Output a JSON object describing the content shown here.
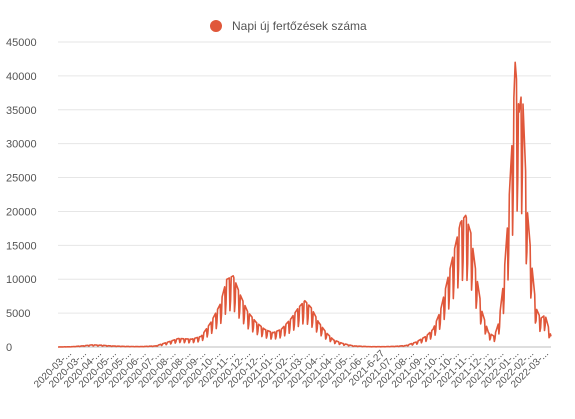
{
  "chart_data": {
    "type": "line",
    "legend": {
      "position": "top",
      "label": "Napi új fertőzések száma"
    },
    "colors": {
      "series": "#e0573a",
      "grid": "#e6e6e6",
      "axis_text": "#555555"
    },
    "ylim": [
      0,
      45000
    ],
    "y_ticks": [
      0,
      5000,
      10000,
      15000,
      20000,
      25000,
      30000,
      35000,
      40000,
      45000
    ],
    "x_range": [
      "2020-03-04",
      "2022-03-31"
    ],
    "x_tick_labels": [
      "2020-03-...",
      "2020-03-...",
      "2020-04-...",
      "2020-05-...",
      "2020-05-...",
      "2020-06-...",
      "2020-07-...",
      "2020-08-...",
      "2020-08-...",
      "2020-09-...",
      "2020-10-...",
      "2020-11-...",
      "2020-12-...",
      "2020-12-...",
      "2021-01-...",
      "2021-02-...",
      "2021-03-...",
      "2021-04-...",
      "2021-04-...",
      "2021-05-...",
      "2021-06-...",
      "2021-6-27",
      "2021-07-...",
      "2021-08-...",
      "2021-09-...",
      "2021-10-...",
      "2021-10-...",
      "2021-11-...",
      "2021-12-...",
      "2021-12-...",
      "2022-01-...",
      "2022-02-...",
      "2022-03-..."
    ],
    "grid": true,
    "series": [
      {
        "name": "Napi új fertőzések száma",
        "points": [
          [
            "2020-03-04",
            0
          ],
          [
            "2020-03-25",
            40
          ],
          [
            "2020-04-10",
            150
          ],
          [
            "2020-04-25",
            300
          ],
          [
            "2020-05-10",
            250
          ],
          [
            "2020-05-25",
            150
          ],
          [
            "2020-06-15",
            80
          ],
          [
            "2020-07-10",
            60
          ],
          [
            "2020-08-01",
            150
          ],
          [
            "2020-08-20",
            700
          ],
          [
            "2020-09-05",
            1200
          ],
          [
            "2020-09-25",
            1100
          ],
          [
            "2020-10-10",
            1500
          ],
          [
            "2020-10-25",
            3500
          ],
          [
            "2020-11-08",
            6000
          ],
          [
            "2020-11-18",
            9500
          ],
          [
            "2020-11-28",
            10000
          ],
          [
            "2020-12-08",
            7500
          ],
          [
            "2020-12-20",
            5000
          ],
          [
            "2021-01-02",
            3500
          ],
          [
            "2021-01-15",
            2500
          ],
          [
            "2021-01-28",
            2000
          ],
          [
            "2021-02-10",
            2500
          ],
          [
            "2021-02-25",
            4000
          ],
          [
            "2021-03-08",
            5500
          ],
          [
            "2021-03-18",
            6500
          ],
          [
            "2021-03-28",
            5500
          ],
          [
            "2021-04-08",
            3500
          ],
          [
            "2021-04-20",
            2000
          ],
          [
            "2021-05-01",
            1000
          ],
          [
            "2021-05-15",
            500
          ],
          [
            "2021-06-01",
            150
          ],
          [
            "2021-06-27",
            40
          ],
          [
            "2021-07-20",
            50
          ],
          [
            "2021-08-05",
            100
          ],
          [
            "2021-08-20",
            200
          ],
          [
            "2021-09-05",
            700
          ],
          [
            "2021-09-20",
            1500
          ],
          [
            "2021-10-01",
            2500
          ],
          [
            "2021-10-12",
            5000
          ],
          [
            "2021-10-22",
            9000
          ],
          [
            "2021-11-01",
            13000
          ],
          [
            "2021-11-12",
            17500
          ],
          [
            "2021-11-20",
            18500
          ],
          [
            "2021-11-28",
            16000
          ],
          [
            "2021-12-05",
            11000
          ],
          [
            "2021-12-15",
            5000
          ],
          [
            "2021-12-25",
            2000
          ],
          [
            "2022-01-03",
            1500
          ],
          [
            "2022-01-10",
            3500
          ],
          [
            "2022-01-17",
            9000
          ],
          [
            "2022-01-24",
            18000
          ],
          [
            "2022-01-31",
            30000
          ],
          [
            "2022-02-04",
            40000
          ],
          [
            "2022-02-10",
            33000
          ],
          [
            "2022-02-15",
            36500
          ],
          [
            "2022-02-22",
            20000
          ],
          [
            "2022-03-01",
            12000
          ],
          [
            "2022-03-08",
            5500
          ],
          [
            "2022-03-15",
            4000
          ],
          [
            "2022-03-22",
            4500
          ],
          [
            "2022-03-31",
            1500
          ]
        ]
      }
    ]
  }
}
